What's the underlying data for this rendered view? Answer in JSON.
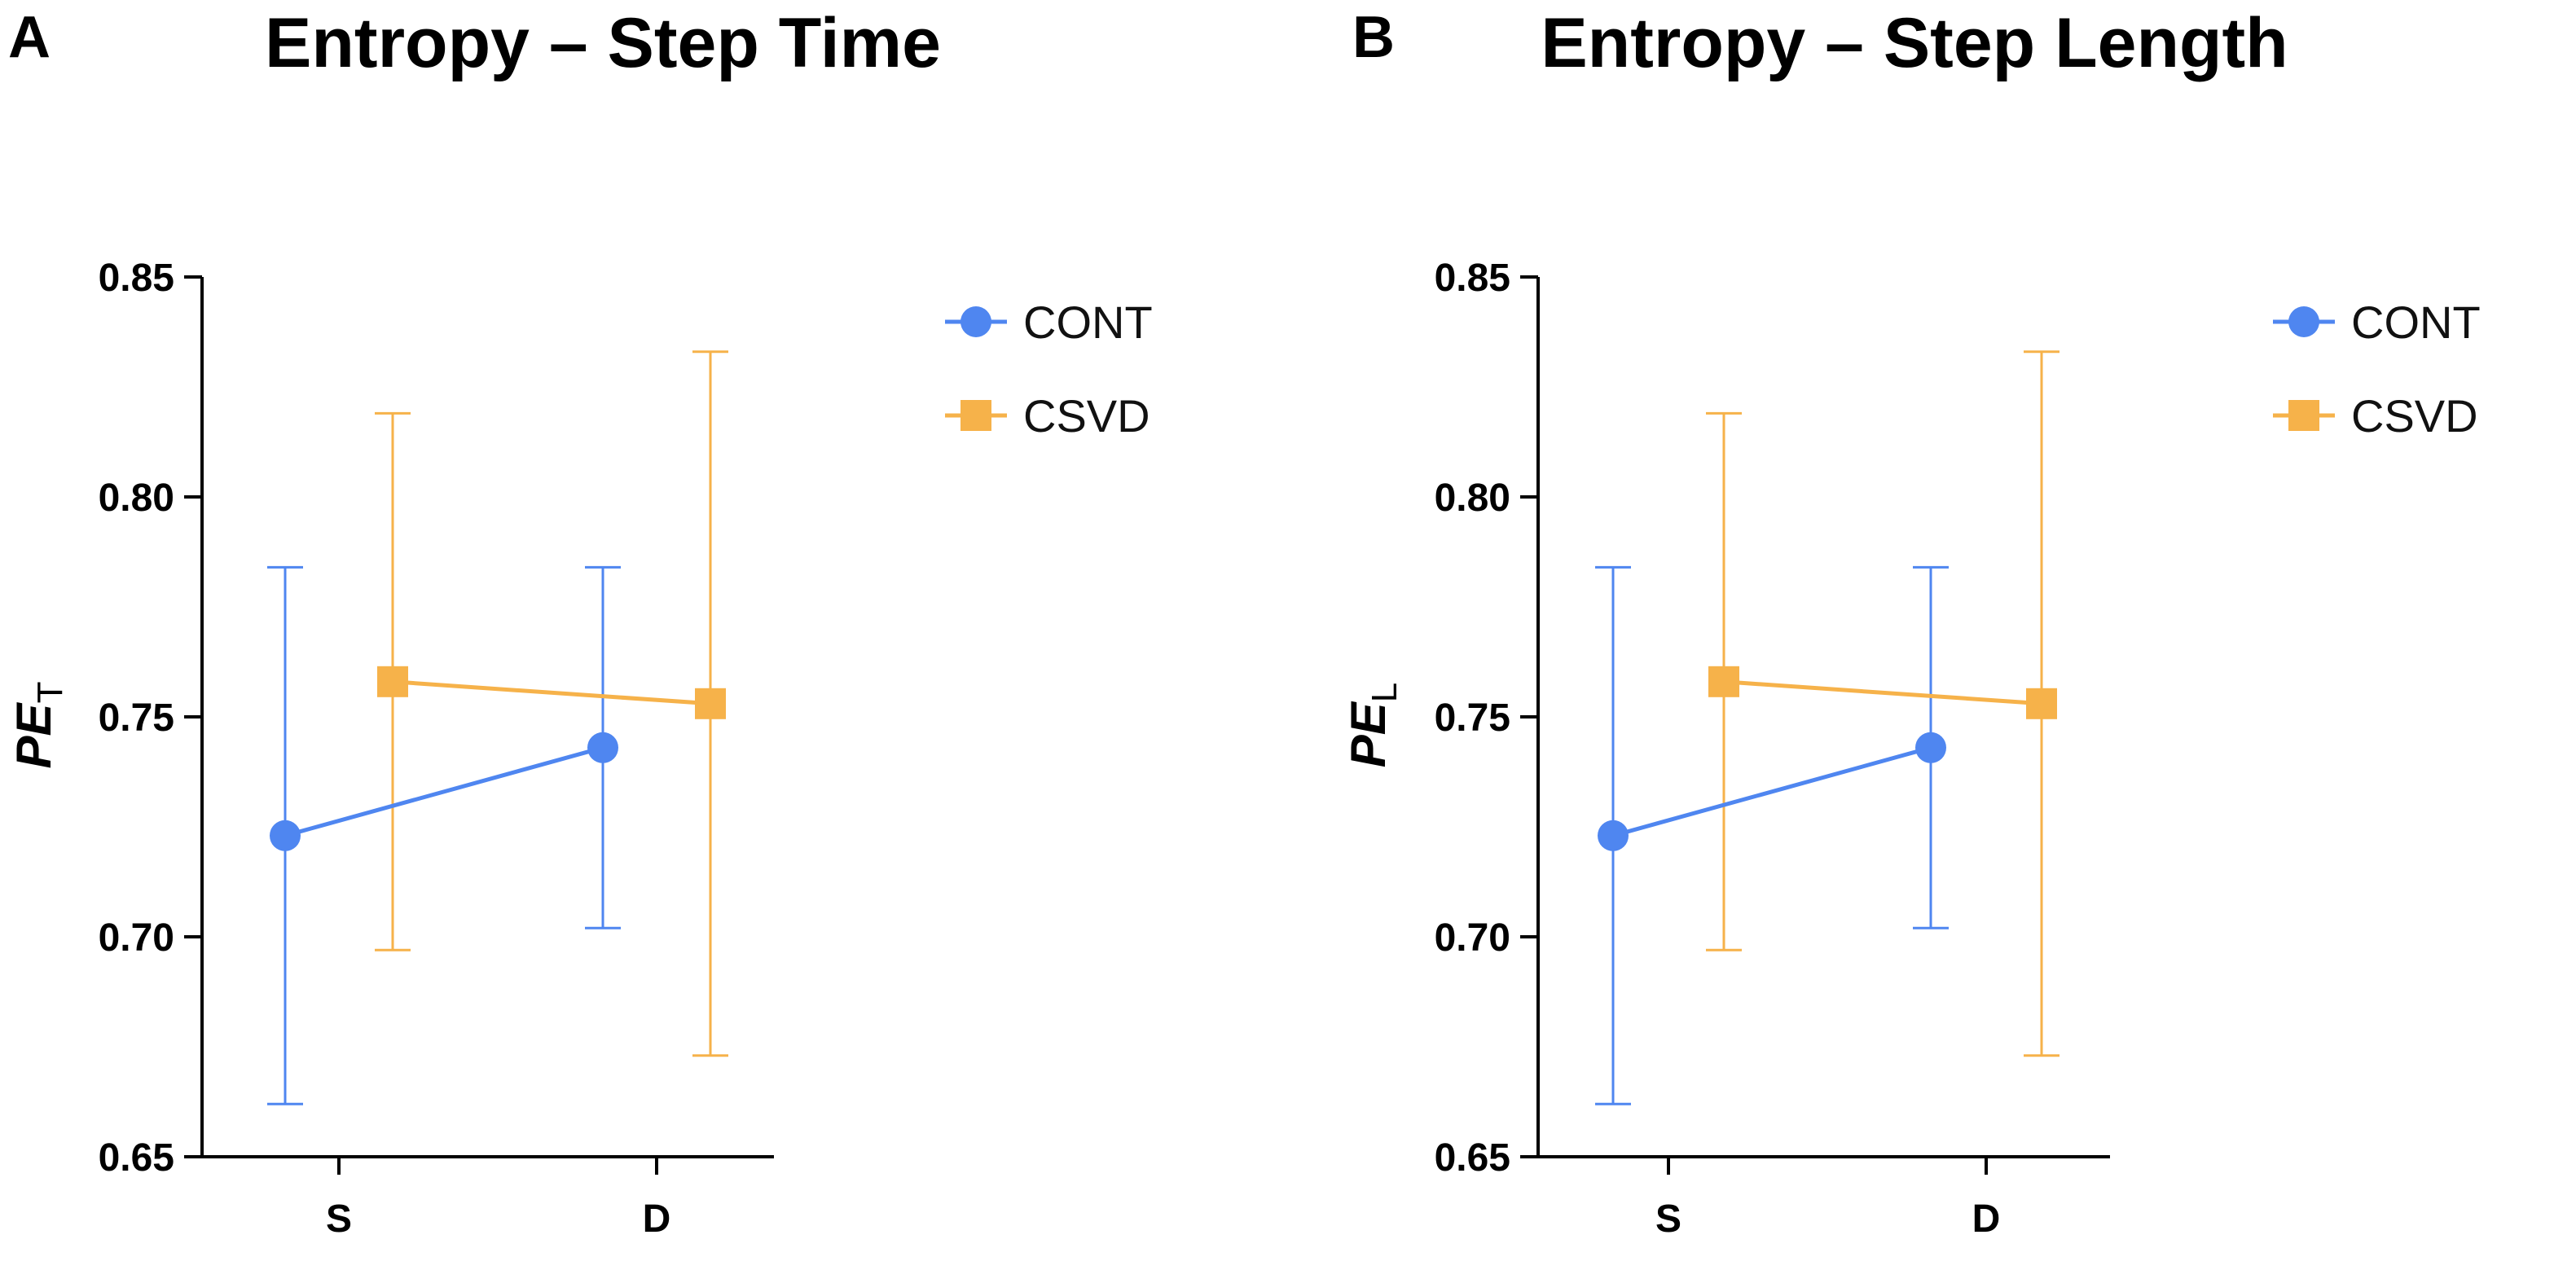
{
  "colors": {
    "CONT": "#4f86f0",
    "CSVD": "#f6b24a"
  },
  "chart_data": [
    {
      "panel": "A",
      "type": "line",
      "title": "Entropy – Step Time",
      "ylabel": "PE",
      "ylabel_sub": "T",
      "xlabel": "",
      "categories": [
        "S",
        "D"
      ],
      "ylim": [
        0.65,
        0.85
      ],
      "yticks": [
        "0.85",
        "0.80",
        "0.75",
        "0.70",
        "0.65"
      ],
      "legend_position": "top-right",
      "series": [
        {
          "name": "CONT",
          "marker": "circle",
          "values": [
            0.723,
            0.743
          ],
          "err_low": [
            0.662,
            0.702
          ],
          "err_high": [
            0.784,
            0.784
          ]
        },
        {
          "name": "CSVD",
          "marker": "square",
          "values": [
            0.758,
            0.753
          ],
          "err_low": [
            0.697,
            0.673
          ],
          "err_high": [
            0.819,
            0.833
          ]
        }
      ]
    },
    {
      "panel": "B",
      "type": "line",
      "title": "Entropy – Step Length",
      "ylabel": "PE",
      "ylabel_sub": "L",
      "xlabel": "",
      "categories": [
        "S",
        "D"
      ],
      "ylim": [
        0.65,
        0.85
      ],
      "yticks": [
        "0.85",
        "0.80",
        "0.75",
        "0.70",
        "0.65"
      ],
      "legend_position": "top-right",
      "series": [
        {
          "name": "CONT",
          "marker": "circle",
          "values": [
            0.723,
            0.743
          ],
          "err_low": [
            0.662,
            0.702
          ],
          "err_high": [
            0.784,
            0.784
          ]
        },
        {
          "name": "CSVD",
          "marker": "square",
          "values": [
            0.758,
            0.753
          ],
          "err_low": [
            0.697,
            0.673
          ],
          "err_high": [
            0.819,
            0.833
          ]
        }
      ]
    }
  ]
}
